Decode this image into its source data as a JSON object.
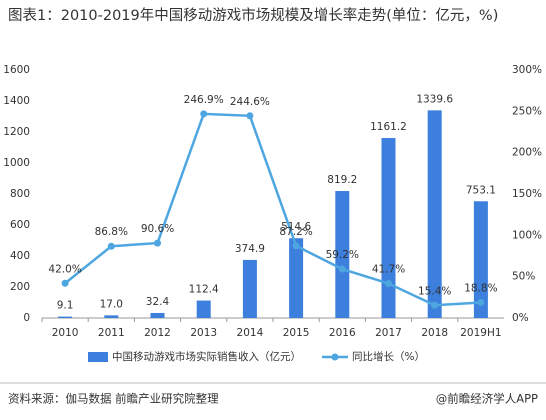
{
  "chart_data": {
    "type": "bar",
    "title": "图表1：2010-2019年中国移动游戏市场规模及增长率走势(单位：亿元，%)",
    "categories": [
      "2010",
      "2011",
      "2012",
      "2013",
      "2014",
      "2015",
      "2016",
      "2017",
      "2018",
      "2019H1"
    ],
    "series": [
      {
        "name": "中国移动游戏市场实际销售收入（亿元）",
        "type": "bar",
        "color": "#3d7fdc",
        "values": [
          9.1,
          17.0,
          32.4,
          112.4,
          374.9,
          514.6,
          819.2,
          1161.2,
          1339.6,
          753.1
        ],
        "value_labels": [
          "9.1",
          "17.0",
          "32.4",
          "112.4",
          "374.9",
          "514.6",
          "819.2",
          "1161.2",
          "1339.6",
          "753.1"
        ]
      },
      {
        "name": "同比增长（%）",
        "type": "line",
        "axis": "y2",
        "color": "#4ea6e0",
        "values": [
          42.0,
          86.8,
          90.6,
          246.9,
          244.6,
          87.2,
          59.2,
          41.7,
          15.4,
          18.8
        ],
        "value_labels": [
          "42.0%",
          "86.8%",
          "90.6%",
          "246.9%",
          "244.6%",
          "87.2%",
          "59.2%",
          "41.7%",
          "15.4%",
          "18.8%"
        ]
      }
    ],
    "ylim": [
      0,
      1600
    ],
    "yticks": [
      0,
      200,
      400,
      600,
      800,
      1000,
      1200,
      1400,
      1600
    ],
    "y2lim": [
      0,
      300
    ],
    "y2ticks": [
      {
        "value": 0,
        "label": "0%"
      },
      {
        "value": 50,
        "label": "50%"
      },
      {
        "value": 100,
        "label": "100%"
      },
      {
        "value": 150,
        "label": "150%"
      },
      {
        "value": 200,
        "label": "200%"
      },
      {
        "value": 250,
        "label": "250%"
      },
      {
        "value": 300,
        "label": "300%"
      }
    ],
    "grid": false,
    "source": "资料来源：伽马数据 前瞻产业研究院整理",
    "brand": "@前瞻经济学人APP"
  }
}
